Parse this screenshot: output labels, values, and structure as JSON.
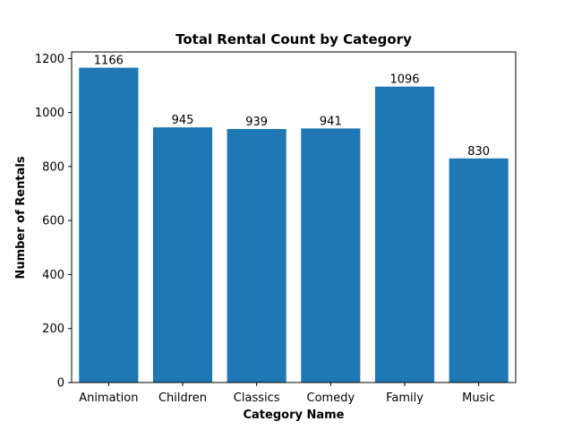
{
  "chart_data": {
    "type": "bar",
    "title": "Total Rental Count by Category",
    "xlabel": "Category Name",
    "ylabel": "Number of Rentals",
    "categories": [
      "Animation",
      "Children",
      "Classics",
      "Comedy",
      "Family",
      "Music"
    ],
    "values": [
      1166,
      945,
      939,
      941,
      1096,
      830
    ],
    "data_labels": [
      "1166",
      "945",
      "939",
      "941",
      "1096",
      "830"
    ],
    "y_ticks": [
      0,
      200,
      400,
      600,
      800,
      1000,
      1200
    ],
    "ylim": [
      0,
      1224.3
    ],
    "grid": false,
    "legend": "none",
    "bar_color": "#1f77b4"
  }
}
